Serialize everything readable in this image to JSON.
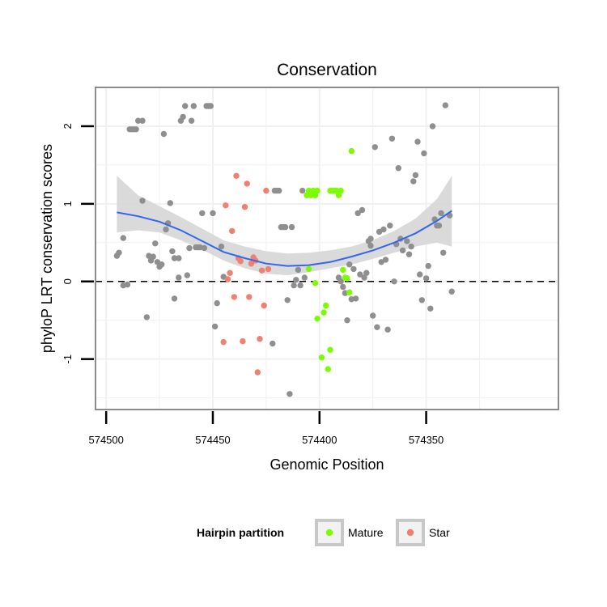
{
  "chart_data": {
    "type": "scatter",
    "title": "Conservation",
    "xlabel": "Genomic Position",
    "ylabel": "phyloP LRT conservation scores",
    "x_reversed": true,
    "xlim": [
      574288,
      574505
    ],
    "ylim": [
      -1.65,
      2.5
    ],
    "x_ticks": [
      574500,
      574450,
      574400,
      574350
    ],
    "x_tick_labels": [
      "574500",
      "574450",
      "574400",
      "574350"
    ],
    "y_ticks": [
      -1,
      0,
      1,
      2
    ],
    "y_tick_labels": [
      "-1",
      "0",
      "1",
      "2"
    ],
    "reference_line": {
      "y": 0,
      "style": "dashed"
    },
    "legend": {
      "title": "Hairpin partition",
      "position": "bottom",
      "entries": [
        {
          "label": "Mature",
          "color": "#7cfc00"
        },
        {
          "label": "Star",
          "color": "#f08070"
        }
      ]
    },
    "colors": {
      "other": "#8f8f8f",
      "mature": "#7cfc00",
      "star": "#f08070",
      "smooth": "#3366ee",
      "band": "#d6d6d6",
      "panel_border": "#8c8c8c",
      "grid": "#f0f0f0"
    },
    "series": [
      {
        "name": "Other",
        "points": [
          [
            574495,
            0.33
          ],
          [
            574494,
            0.37
          ],
          [
            574492,
            0.56
          ],
          [
            574492,
            -0.05
          ],
          [
            574490,
            -0.04
          ],
          [
            574489,
            1.96
          ],
          [
            574488,
            1.96
          ],
          [
            574487,
            1.96
          ],
          [
            574486,
            1.96
          ],
          [
            574485,
            2.07
          ],
          [
            574483,
            2.07
          ],
          [
            574483,
            1.04
          ],
          [
            574481,
            -0.46
          ],
          [
            574480,
            0.33
          ],
          [
            574479,
            0.27
          ],
          [
            574478,
            0.32
          ],
          [
            574477,
            0.49
          ],
          [
            574476,
            0.25
          ],
          [
            574475,
            0.19
          ],
          [
            574474,
            0.22
          ],
          [
            574473,
            1.9
          ],
          [
            574472,
            0.67
          ],
          [
            574471,
            0.75
          ],
          [
            574470,
            1.01
          ],
          [
            574469,
            0.39
          ],
          [
            574468,
            -0.22
          ],
          [
            574468,
            0.3
          ],
          [
            574466,
            0.05
          ],
          [
            574466,
            0.3
          ],
          [
            574465,
            2.07
          ],
          [
            574464,
            2.12
          ],
          [
            574463,
            2.26
          ],
          [
            574462,
            0.08
          ],
          [
            574461,
            0.43
          ],
          [
            574460,
            2.07
          ],
          [
            574459,
            2.26
          ],
          [
            574458,
            0.44
          ],
          [
            574457,
            0.44
          ],
          [
            574456,
            0.44
          ],
          [
            574455,
            0.88
          ],
          [
            574454,
            0.43
          ],
          [
            574453,
            2.26
          ],
          [
            574452,
            2.26
          ],
          [
            574451,
            2.26
          ],
          [
            574450,
            0.88
          ],
          [
            574449,
            -0.58
          ],
          [
            574448,
            -0.28
          ],
          [
            574446,
            0.45
          ],
          [
            574445,
            0.06
          ],
          [
            574422,
            -0.8
          ],
          [
            574421,
            1.17
          ],
          [
            574420,
            1.17
          ],
          [
            574419,
            1.17
          ],
          [
            574418,
            0.7
          ],
          [
            574417,
            0.7
          ],
          [
            574416,
            0.7
          ],
          [
            574415,
            -0.24
          ],
          [
            574414,
            -1.45
          ],
          [
            574413,
            0.7
          ],
          [
            574412,
            -0.05
          ],
          [
            574411,
            0.02
          ],
          [
            574410,
            0.15
          ],
          [
            574409,
            -0.05
          ],
          [
            574408,
            1.17
          ],
          [
            574407,
            0.05
          ],
          [
            574391,
            0.05
          ],
          [
            574390,
            0.0
          ],
          [
            574389,
            -0.07
          ],
          [
            574388,
            -0.15
          ],
          [
            574387,
            -0.5
          ],
          [
            574386,
            0.22
          ],
          [
            574385,
            -0.23
          ],
          [
            574384,
            0.16
          ],
          [
            574383,
            -0.22
          ],
          [
            574382,
            0.88
          ],
          [
            574381,
            0.09
          ],
          [
            574380,
            0.92
          ],
          [
            574379,
            0.05
          ],
          [
            574378,
            0.11
          ],
          [
            574377,
            0.52
          ],
          [
            574376,
            0.46
          ],
          [
            574376,
            0.55
          ],
          [
            574375,
            -0.44
          ],
          [
            574374,
            1.73
          ],
          [
            574373,
            -0.59
          ],
          [
            574372,
            0.64
          ],
          [
            574371,
            0.25
          ],
          [
            574370,
            0.67
          ],
          [
            574369,
            0.28
          ],
          [
            574368,
            -0.62
          ],
          [
            574367,
            0.72
          ],
          [
            574366,
            1.84
          ],
          [
            574365,
            0.0
          ],
          [
            574364,
            0.48
          ],
          [
            574363,
            1.46
          ],
          [
            574362,
            0.55
          ],
          [
            574361,
            0.4
          ],
          [
            574359,
            0.52
          ],
          [
            574358,
            0.35
          ],
          [
            574357,
            0.45
          ],
          [
            574356,
            1.29
          ],
          [
            574355,
            1.37
          ],
          [
            574354,
            1.8
          ],
          [
            574353,
            0.09
          ],
          [
            574352,
            -0.24
          ],
          [
            574351,
            1.65
          ],
          [
            574350,
            0.04
          ],
          [
            574349,
            0.2
          ],
          [
            574348,
            -0.35
          ],
          [
            574347,
            2.0
          ],
          [
            574346,
            0.8
          ],
          [
            574345,
            0.72
          ],
          [
            574344,
            0.72
          ],
          [
            574343,
            0.88
          ],
          [
            574342,
            0.37
          ],
          [
            574341,
            2.27
          ],
          [
            574339,
            0.85
          ],
          [
            574338,
            -0.13
          ]
        ]
      },
      {
        "name": "Mature",
        "points": [
          [
            574406,
            1.11
          ],
          [
            574405,
            1.17
          ],
          [
            574404,
            1.11
          ],
          [
            574403,
            1.17
          ],
          [
            574402,
            1.11
          ],
          [
            574401,
            1.17
          ],
          [
            574405,
            0.16
          ],
          [
            574402,
            -0.02
          ],
          [
            574401,
            -0.48
          ],
          [
            574399,
            -0.98
          ],
          [
            574398,
            -0.4
          ],
          [
            574397,
            -0.31
          ],
          [
            574396,
            -1.13
          ],
          [
            574395,
            -0.88
          ],
          [
            574395,
            1.17
          ],
          [
            574394,
            1.17
          ],
          [
            574393,
            1.17
          ],
          [
            574392,
            1.17
          ],
          [
            574391,
            1.11
          ],
          [
            574390,
            1.17
          ],
          [
            574389,
            0.15
          ],
          [
            574388,
            0.05
          ],
          [
            574387,
            0.04
          ],
          [
            574386,
            -0.14
          ],
          [
            574385,
            1.68
          ]
        ]
      },
      {
        "name": "Star",
        "points": [
          [
            574445,
            -0.78
          ],
          [
            574444,
            0.98
          ],
          [
            574443,
            0.03
          ],
          [
            574442,
            0.11
          ],
          [
            574441,
            0.65
          ],
          [
            574440,
            -0.2
          ],
          [
            574439,
            1.36
          ],
          [
            574438,
            0.3
          ],
          [
            574437,
            0.26
          ],
          [
            574436,
            -0.77
          ],
          [
            574435,
            0.96
          ],
          [
            574434,
            1.26
          ],
          [
            574433,
            -0.2
          ],
          [
            574432,
            0.23
          ],
          [
            574431,
            0.31
          ],
          [
            574430,
            0.27
          ],
          [
            574429,
            -1.17
          ],
          [
            574428,
            -0.74
          ],
          [
            574427,
            0.14
          ],
          [
            574426,
            -0.31
          ],
          [
            574425,
            1.17
          ],
          [
            574424,
            0.16
          ]
        ]
      }
    ],
    "smooth": {
      "x": [
        574495,
        574485,
        574475,
        574465,
        574455,
        574445,
        574435,
        574425,
        574415,
        574405,
        574395,
        574385,
        574375,
        574365,
        574355,
        574345,
        574338
      ],
      "y": [
        0.89,
        0.84,
        0.77,
        0.66,
        0.52,
        0.38,
        0.3,
        0.23,
        0.2,
        0.21,
        0.25,
        0.32,
        0.4,
        0.5,
        0.62,
        0.78,
        0.91
      ],
      "lower": [
        0.63,
        0.66,
        0.63,
        0.53,
        0.41,
        0.27,
        0.17,
        0.1,
        0.08,
        0.12,
        0.17,
        0.22,
        0.29,
        0.37,
        0.45,
        0.5,
        0.45
      ],
      "upper": [
        1.36,
        1.11,
        0.97,
        0.83,
        0.68,
        0.53,
        0.45,
        0.39,
        0.36,
        0.37,
        0.4,
        0.45,
        0.53,
        0.65,
        0.81,
        1.06,
        1.36
      ]
    }
  }
}
